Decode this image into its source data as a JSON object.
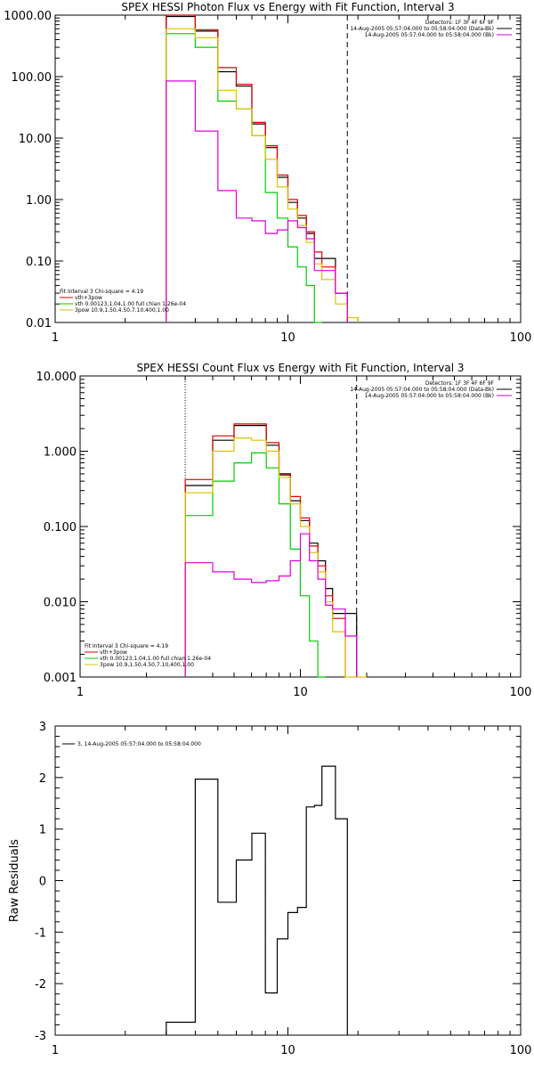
{
  "chart_data": [
    {
      "type": "line",
      "title": "SPEX HESSI Photon Flux vs Energy with Fit Function, Interval 3",
      "xscale": "log",
      "yscale": "log",
      "xlim": [
        1,
        100
      ],
      "ylim": [
        0.01,
        1000
      ],
      "x_ticks": [
        "1",
        "10",
        "100"
      ],
      "y_ticks": [
        "1000.00",
        "100.00",
        "10.00",
        "1.00",
        "0.10",
        "0.01"
      ],
      "header_lines": [
        "Detectors: 1F 3F 4F 6F 9F",
        "14-Aug-2005 05:57:04.000 to 05:58:04.000 (Data-Bk)",
        "14-Aug-2005 05:57:04.000 to 05:58:04.000 (Bk)"
      ],
      "fit_info": [
        "Fit Interval 3   Chi-square = 4.19",
        "vth+3pow",
        "vth 0.00123,1.04,1.00  full chian 1.26e-04",
        "3pow 10.9,1.50,4.50,7.10,400,1.00"
      ],
      "vlines": [
        3.0,
        18.0
      ],
      "edges": [
        3,
        4,
        5,
        6,
        7,
        8,
        9,
        10,
        11,
        12,
        13,
        14,
        16,
        18,
        20
      ],
      "series": [
        {
          "color": "#000000",
          "values": [
            950,
            550,
            120,
            70,
            17,
            7,
            2.3,
            0.9,
            0.5,
            0.28,
            0.11,
            0.11,
            0.03,
            null
          ]
        },
        {
          "color": "#e00000",
          "values": [
            1000,
            580,
            140,
            75,
            18,
            7.5,
            2.5,
            1.0,
            0.55,
            0.3,
            0.14,
            0.08,
            0.03,
            null
          ]
        },
        {
          "color": "#00cc00",
          "values": [
            500,
            300,
            40,
            30,
            11,
            1.3,
            0.5,
            0.17,
            0.08,
            0.04,
            0.01,
            null,
            null,
            null
          ]
        },
        {
          "color": "#e0c000",
          "values": [
            600,
            430,
            60,
            30,
            11,
            4.5,
            1.6,
            0.7,
            0.38,
            0.2,
            0.09,
            0.05,
            0.02,
            0.012
          ]
        },
        {
          "color": "#dd00dd",
          "values": [
            85,
            13,
            1.4,
            0.5,
            0.45,
            0.28,
            0.32,
            0.45,
            0.35,
            0.23,
            0.07,
            0.07,
            0.03,
            null
          ]
        }
      ]
    },
    {
      "type": "line",
      "title": "SPEX HESSI Count Flux vs Energy with Fit Function, Interval 3",
      "xscale": "log",
      "yscale": "log",
      "xlim": [
        1,
        100
      ],
      "ylim": [
        0.001,
        10
      ],
      "x_ticks": [
        "1",
        "10",
        "100"
      ],
      "y_ticks": [
        "10.000",
        "1.000",
        "0.100",
        "0.010",
        "0.001"
      ],
      "header_lines": [
        "Detectors: 1F 3F 4F 6F 9F",
        "14-Aug-2005 05:57:04.000 to 05:58:04.000 (Data-Bk)",
        "14-Aug-2005 05:57:04.000 to 05:58:04.000 (Bk)"
      ],
      "fit_info": [
        "Fit Interval 3   Chi-square = 4.19",
        "vth+3pow",
        "vth 0.00123,1.04,1.00  full chian 1.26e-04",
        "3pow 10.9,1.50,4.50,7.10,400,1.00"
      ],
      "vlines": [
        3.0,
        18.0
      ],
      "edges": [
        3,
        4,
        5,
        6,
        7,
        8,
        9,
        10,
        11,
        12,
        13,
        14,
        16,
        18,
        20
      ],
      "series": [
        {
          "color": "#000000",
          "values": [
            0.35,
            1.4,
            2.2,
            2.2,
            1.2,
            0.5,
            0.22,
            0.12,
            0.06,
            0.035,
            0.015,
            0.007,
            0.007,
            null
          ]
        },
        {
          "color": "#e00000",
          "values": [
            0.42,
            1.6,
            2.3,
            2.3,
            1.3,
            0.48,
            0.25,
            0.13,
            0.055,
            0.03,
            0.012,
            0.006,
            null,
            null
          ]
        },
        {
          "color": "#00cc00",
          "values": [
            0.14,
            0.4,
            0.7,
            0.95,
            0.6,
            0.2,
            0.05,
            0.012,
            0.003,
            0.001,
            null,
            null,
            null,
            null
          ]
        },
        {
          "color": "#e0c000",
          "values": [
            0.28,
            1.0,
            1.5,
            1.4,
            1.0,
            0.45,
            0.2,
            0.1,
            0.045,
            0.025,
            0.01,
            0.004,
            0.001,
            0.0006
          ]
        },
        {
          "color": "#dd00dd",
          "values": [
            0.033,
            0.025,
            0.02,
            0.018,
            0.019,
            0.022,
            0.035,
            0.08,
            0.035,
            0.02,
            0.009,
            0.008,
            0.0035,
            null
          ]
        }
      ]
    },
    {
      "type": "line",
      "ylabel": "Raw Residuals",
      "xscale": "log",
      "xlim": [
        1,
        100
      ],
      "ylim": [
        -3,
        3
      ],
      "x_ticks": [
        "1",
        "10",
        "100"
      ],
      "y_ticks": [
        "3",
        "2",
        "1",
        "0",
        "-1",
        "-2",
        "-3"
      ],
      "legend": [
        "3, 14-Aug-2005 05:57:04.000 to 05:58:04.000"
      ],
      "edges": [
        3,
        4,
        5,
        6,
        7,
        8,
        9,
        10,
        11,
        12,
        13,
        14,
        16,
        18
      ],
      "series": [
        {
          "color": "#000000",
          "values": [
            -2.75,
            1.97,
            -0.42,
            0.4,
            0.92,
            -2.18,
            -1.13,
            -0.62,
            -0.52,
            1.43,
            1.46,
            2.22,
            1.2
          ]
        }
      ]
    }
  ]
}
